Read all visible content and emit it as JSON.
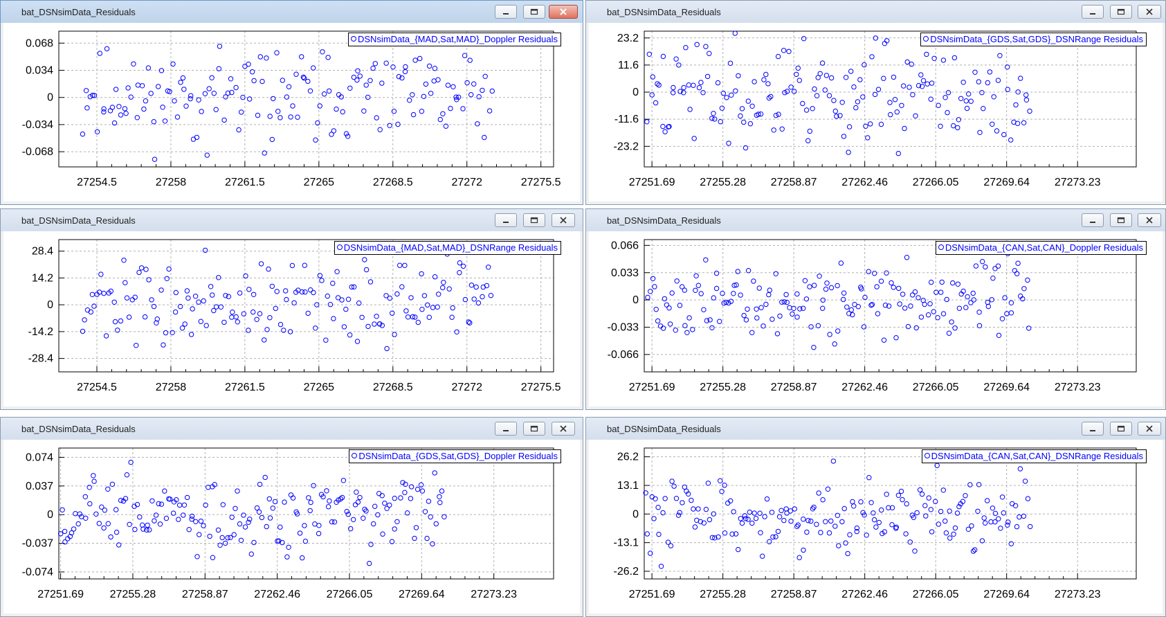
{
  "windows": [
    {
      "title": "bat_DSNsimData_Residuals",
      "active": true,
      "legend": "DSNsimData_{MAD,Sat,MAD}_Doppler Residuals",
      "chart_data": {
        "type": "scatter",
        "xlabel": "",
        "ylabel": "",
        "xticks": [
          "27254.5",
          "27258",
          "27261.5",
          "27265",
          "27268.5",
          "27272",
          "27275.5"
        ],
        "yticks": [
          "0.068",
          "0.034",
          "0",
          "-0.034",
          "-0.068"
        ],
        "xlim": [
          27252.7,
          27276.1
        ],
        "ylim": [
          -0.087,
          0.083
        ],
        "grid": true,
        "legend_position": "top-right",
        "series": [
          {
            "name": "DSNsimData_{MAD,Sat,MAD}_Doppler Residuals",
            "x": [],
            "y": []
          }
        ]
      }
    },
    {
      "title": "bat_DSNsimData_Residuals",
      "active": false,
      "legend": "DSNsimData_{GDS,Sat,GDS}_DSNRange Residuals",
      "chart_data": {
        "type": "scatter",
        "xlabel": "",
        "ylabel": "",
        "xticks": [
          "27251.69",
          "27255.28",
          "27258.87",
          "27262.46",
          "27266.05",
          "27269.64",
          "27273.23"
        ],
        "yticks": [
          "23.2",
          "11.6",
          "0",
          "-11.6",
          "-23.2"
        ],
        "xlim": [
          27251.3,
          27276.2
        ],
        "ylim": [
          -32.0,
          26.1
        ],
        "grid": true,
        "legend_position": "top-right",
        "series": [
          {
            "name": "DSNsimData_{GDS,Sat,GDS}_DSNRange Residuals",
            "x": [],
            "y": []
          }
        ]
      }
    },
    {
      "title": "bat_DSNsimData_Residuals",
      "active": false,
      "legend": "DSNsimData_{MAD,Sat,MAD}_DSNRange Residuals",
      "chart_data": {
        "type": "scatter",
        "xlabel": "",
        "ylabel": "",
        "xticks": [
          "27254.5",
          "27258",
          "27261.5",
          "27265",
          "27268.5",
          "27272",
          "27275.5"
        ],
        "yticks": [
          "28.4",
          "14.2",
          "0",
          "-14.2",
          "-28.4"
        ],
        "xlim": [
          27252.7,
          27276.1
        ],
        "ylim": [
          -35.5,
          34.5
        ],
        "grid": true,
        "legend_position": "top-right",
        "series": [
          {
            "name": "DSNsimData_{MAD,Sat,MAD}_DSNRange Residuals",
            "x": [],
            "y": []
          }
        ]
      }
    },
    {
      "title": "bat_DSNsimData_Residuals",
      "active": false,
      "legend": "DSNsimData_{CAN,Sat,CAN}_Doppler Residuals",
      "chart_data": {
        "type": "scatter",
        "xlabel": "",
        "ylabel": "",
        "xticks": [
          "27251.69",
          "27255.28",
          "27258.87",
          "27262.46",
          "27266.05",
          "27269.64",
          "27273.23"
        ],
        "yticks": [
          "0.066",
          "0.033",
          "0",
          "-0.033",
          "-0.066"
        ],
        "xlim": [
          27251.3,
          27276.2
        ],
        "ylim": [
          -0.087,
          0.073
        ],
        "grid": true,
        "legend_position": "top-right",
        "series": [
          {
            "name": "DSNsimData_{CAN,Sat,CAN}_Doppler Residuals",
            "x": [],
            "y": []
          }
        ]
      }
    },
    {
      "title": "bat_DSNsimData_Residuals",
      "active": false,
      "legend": "DSNsimData_{GDS,Sat,GDS}_Doppler Residuals",
      "chart_data": {
        "type": "scatter",
        "xlabel": "",
        "ylabel": "",
        "xticks": [
          "27251.69",
          "27255.28",
          "27258.87",
          "27262.46",
          "27266.05",
          "27269.64",
          "27273.23"
        ],
        "yticks": [
          "0.074",
          "0.037",
          "0",
          "-0.037",
          "-0.074"
        ],
        "xlim": [
          27251.6,
          27276.2
        ],
        "ylim": [
          -0.083,
          0.086
        ],
        "grid": true,
        "legend_position": "top-right",
        "series": [
          {
            "name": "DSNsimData_{GDS,Sat,GDS}_Doppler Residuals",
            "x": [],
            "y": []
          }
        ]
      }
    },
    {
      "title": "bat_DSNsimData_Residuals",
      "active": false,
      "legend": "DSNsimData_{CAN,Sat,CAN}_DSNRange Residuals",
      "chart_data": {
        "type": "scatter",
        "xlabel": "",
        "ylabel": "",
        "xticks": [
          "27251.69",
          "27255.28",
          "27258.87",
          "27262.46",
          "27266.05",
          "27269.64",
          "27273.23"
        ],
        "yticks": [
          "26.2",
          "13.1",
          "0",
          "-13.1",
          "-26.2"
        ],
        "xlim": [
          27251.3,
          27276.2
        ],
        "ylim": [
          -29.7,
          30.2
        ],
        "grid": true,
        "legend_position": "top-right",
        "series": [
          {
            "name": "DSNsimData_{CAN,Sat,CAN}_DSNRange Residuals",
            "x": [],
            "y": []
          }
        ]
      }
    }
  ]
}
